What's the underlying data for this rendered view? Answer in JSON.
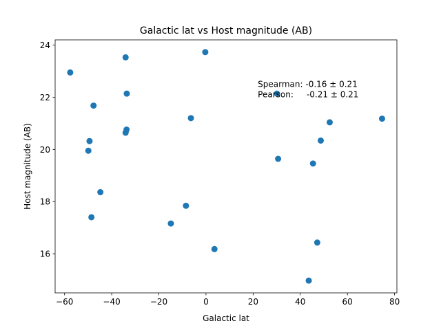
{
  "chart_data": {
    "type": "scatter",
    "title": "Galactic lat vs Host magnitude (AB)",
    "xlabel": "Galactic lat",
    "ylabel": "Host magnitude (AB)",
    "xlim": [
      -64,
      81
    ],
    "ylim": [
      14.5,
      24.2
    ],
    "xticks": [
      -60,
      -40,
      -20,
      0,
      20,
      40,
      60,
      80
    ],
    "yticks": [
      16,
      18,
      20,
      22,
      24
    ],
    "xtick_labels": [
      "−60",
      "−40",
      "−20",
      "0",
      "20",
      "40",
      "60",
      "80"
    ],
    "ytick_labels": [
      "16",
      "18",
      "20",
      "22",
      "24"
    ],
    "grid": false,
    "marker_color": "#1f77b4",
    "annotations": [
      {
        "text": "Spearman: -0.16 ± 0.21",
        "x": 22,
        "y": 22.4
      },
      {
        "text": "Pearson:     -0.21 ± 0.21",
        "x": 22,
        "y": 22.0
      }
    ],
    "points": [
      {
        "x": -57.6,
        "y": 22.95
      },
      {
        "x": -47.7,
        "y": 21.68
      },
      {
        "x": -49.4,
        "y": 20.32
      },
      {
        "x": -49.9,
        "y": 19.95
      },
      {
        "x": -44.8,
        "y": 18.36
      },
      {
        "x": -48.6,
        "y": 17.4
      },
      {
        "x": -34.1,
        "y": 23.53
      },
      {
        "x": -33.6,
        "y": 22.14
      },
      {
        "x": -33.7,
        "y": 20.76
      },
      {
        "x": -34.1,
        "y": 20.64
      },
      {
        "x": -0.3,
        "y": 23.73
      },
      {
        "x": -6.4,
        "y": 21.2
      },
      {
        "x": -8.5,
        "y": 17.84
      },
      {
        "x": -14.9,
        "y": 17.16
      },
      {
        "x": 3.6,
        "y": 16.18
      },
      {
        "x": 30.1,
        "y": 22.14
      },
      {
        "x": 30.6,
        "y": 19.64
      },
      {
        "x": 45.4,
        "y": 19.46
      },
      {
        "x": 48.7,
        "y": 20.34
      },
      {
        "x": 52.5,
        "y": 21.04
      },
      {
        "x": 74.7,
        "y": 21.18
      },
      {
        "x": 47.2,
        "y": 16.43
      },
      {
        "x": 43.6,
        "y": 14.97
      }
    ]
  }
}
